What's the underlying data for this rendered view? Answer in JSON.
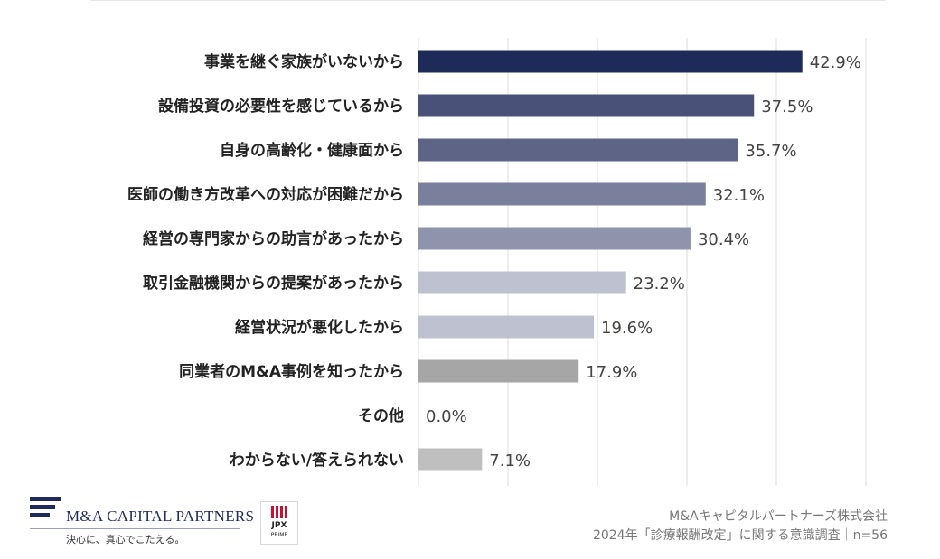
{
  "chart_data": {
    "type": "bar",
    "orientation": "horizontal",
    "categories": [
      "事業を継ぐ家族がいないから",
      "設備投資の必要性を感じているから",
      "自身の高齢化・健康面から",
      "医師の働き方改革への対応が困難だから",
      "経営の専門家からの助言があったから",
      "取引金融機関からの提案があったから",
      "経営状況が悪化したから",
      "同業者のM&A事例を知ったから",
      "その他",
      "わからない/答えられない"
    ],
    "values": [
      42.9,
      37.5,
      35.7,
      32.1,
      30.4,
      23.2,
      19.6,
      17.9,
      0.0,
      7.1
    ],
    "value_labels": [
      "42.9%",
      "37.5%",
      "35.7%",
      "32.1%",
      "30.4%",
      "23.2%",
      "19.6%",
      "17.9%",
      "0.0%",
      "7.1%"
    ],
    "bar_colors": [
      "#1e2a57",
      "#4a5179",
      "#5e6486",
      "#7a7f9c",
      "#8f93ab",
      "#bec1cf",
      "#bec1cf",
      "#a6a6a6",
      "#bfbfbf",
      "#bfbfbf"
    ],
    "xlim": [
      0,
      50
    ],
    "grid_step": 10,
    "grid": true,
    "title": "",
    "xlabel": "",
    "ylabel": ""
  },
  "footer": {
    "company_name": "M&A CAPITAL PARTNERS",
    "tagline": "決心に、真心でこたえる。",
    "jpx_top": "JPX",
    "jpx_bottom": "PRIME",
    "credit_line1": "M&Aキャピタルパートナーズ株式会社",
    "credit_line2": "2024年「診療報酬改定」に関する意識調査｜n=56"
  }
}
